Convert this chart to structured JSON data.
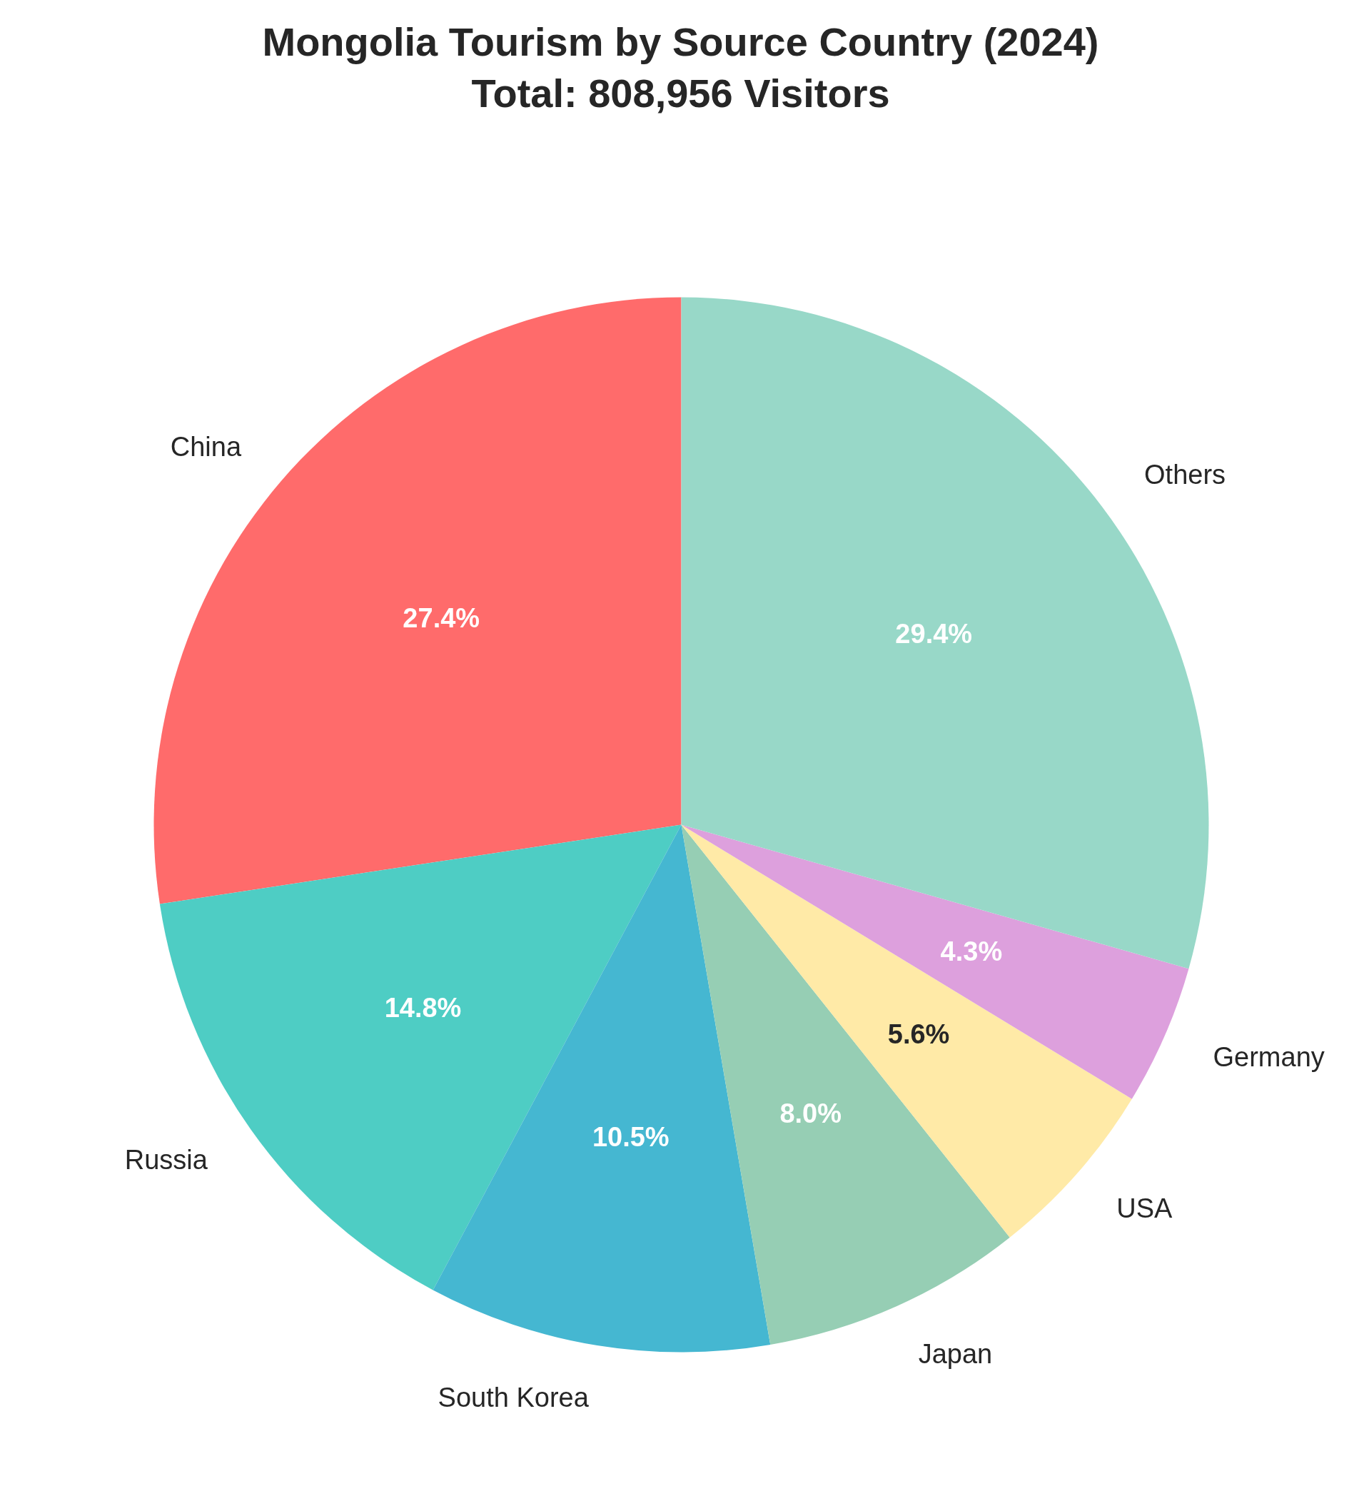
{
  "chart_data": {
    "type": "pie",
    "title": "Mongolia Tourism by Source Country (2024)",
    "subtitle": "Total: 808,956 Visitors",
    "categories": [
      "China",
      "Russia",
      "South Korea",
      "Japan",
      "USA",
      "Germany",
      "Others"
    ],
    "values": [
      27.4,
      14.8,
      10.5,
      8.0,
      5.6,
      4.3,
      29.4
    ],
    "value_labels": [
      "27.4%",
      "14.8%",
      "10.5%",
      "8.0%",
      "5.6%",
      "4.3%",
      "29.4%"
    ],
    "colors": [
      "#ff6b6b",
      "#4ecdc4",
      "#45b7d1",
      "#96ceb4",
      "#ffeaa7",
      "#dda0dd",
      "#98d8c8"
    ]
  }
}
